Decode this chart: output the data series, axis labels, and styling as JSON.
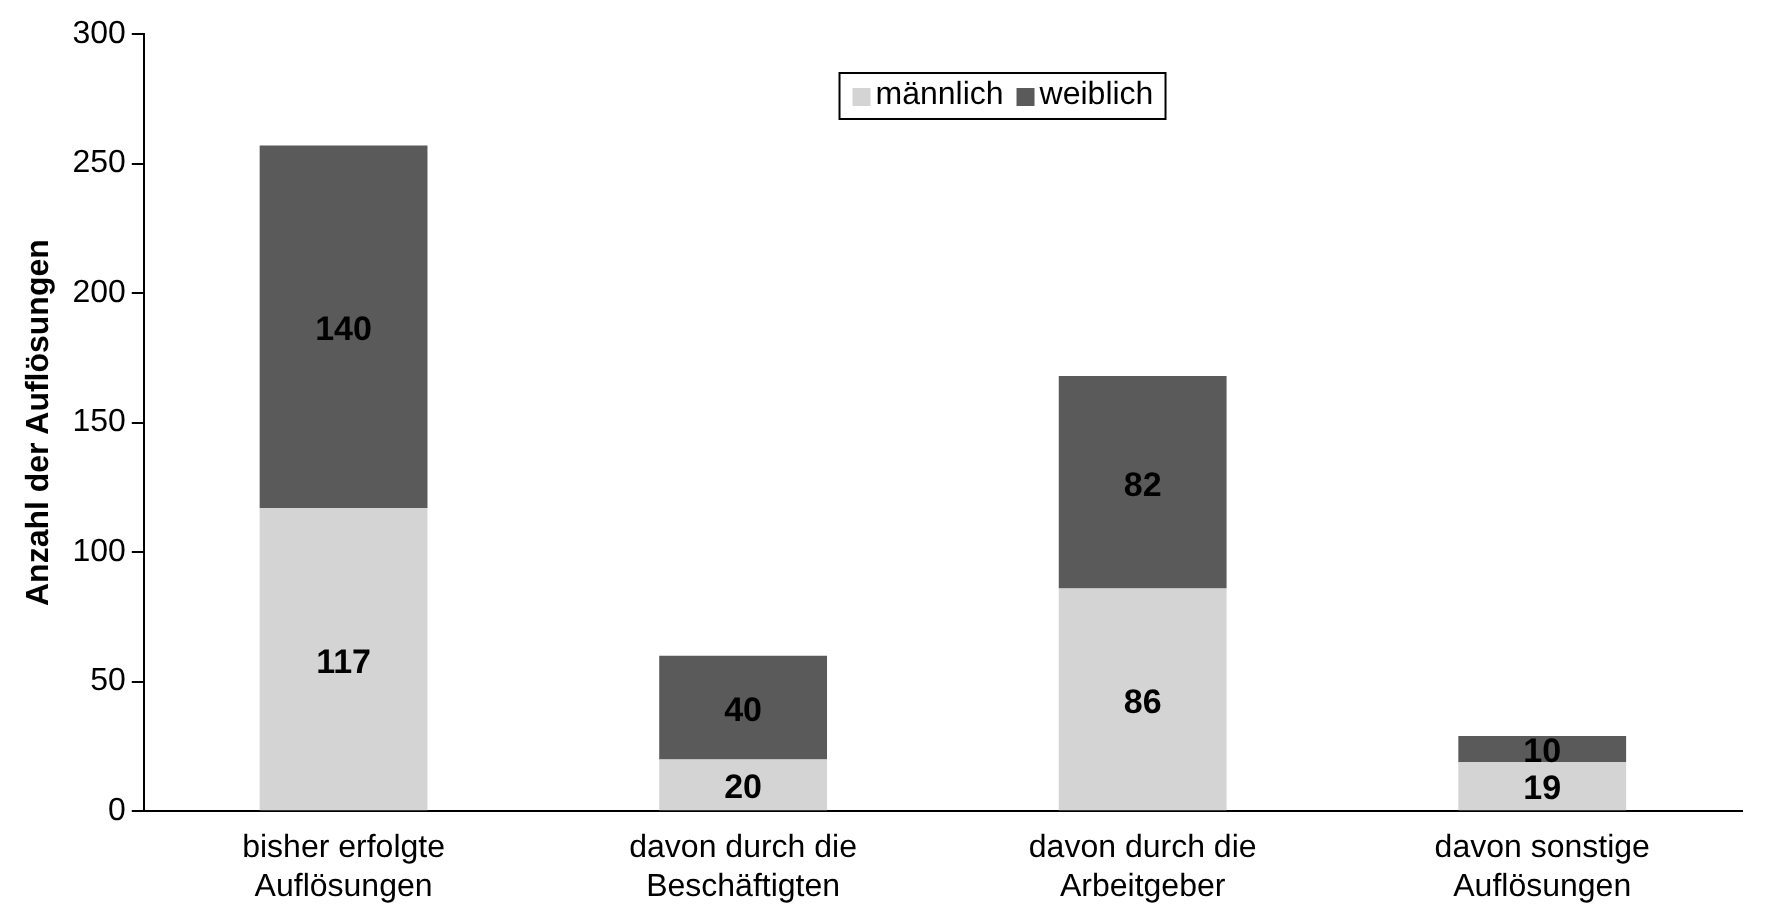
{
  "chart_data": {
    "type": "bar",
    "stacked": true,
    "ylabel": "Anzahl der Auflösungen",
    "categories": [
      "bisher erfolgte\nAuflösungen",
      "davon durch die\nBeschäftigten",
      "davon durch die\nArbeitgeber",
      "davon sonstige\nAuflösungen"
    ],
    "series": [
      {
        "name": "männlich",
        "color": "#d4d4d4",
        "values": [
          117,
          20,
          86,
          19
        ]
      },
      {
        "name": "weiblich",
        "color": "#5a5a5a",
        "values": [
          140,
          40,
          82,
          10
        ]
      }
    ],
    "ylim": [
      0,
      300
    ],
    "yticks": [
      0,
      50,
      100,
      150,
      200,
      250,
      300
    ],
    "grid": false,
    "legend": "top",
    "data_labels": true
  }
}
